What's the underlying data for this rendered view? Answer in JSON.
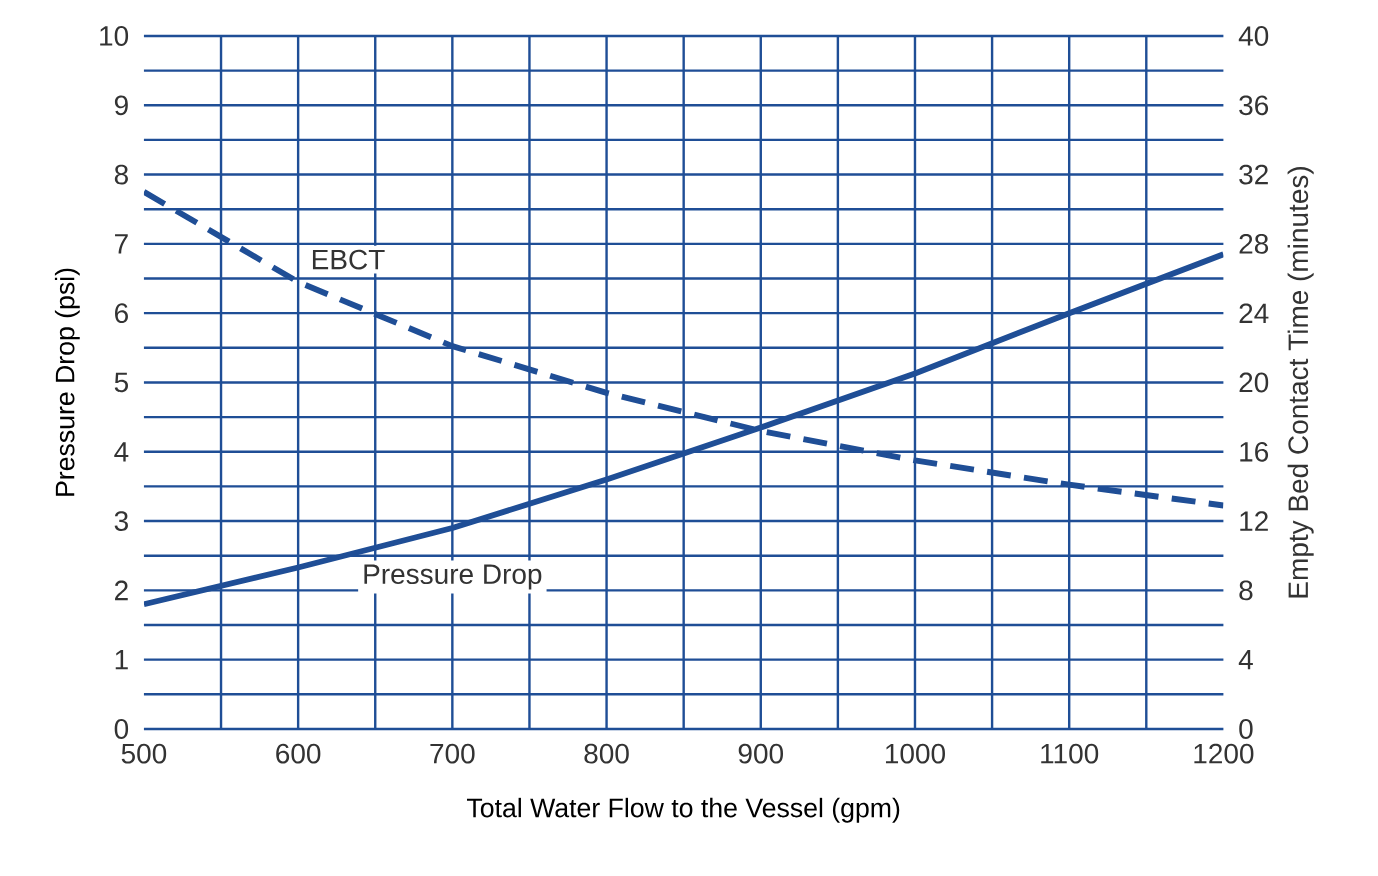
{
  "chart_data": {
    "type": "line",
    "xlabel": "Total Water Flow to the Vessel (gpm)",
    "ylabel": "Pressure Drop (psi)",
    "y2label": "Empty Bed Contact Time (minutes)",
    "x": [
      500,
      600,
      700,
      800,
      900,
      1000,
      1100,
      1200
    ],
    "series": [
      {
        "name": "Pressure Drop",
        "color": "#1f4e96",
        "line_style": "solid",
        "values": [
          1.8,
          2.33,
          2.9,
          3.6,
          4.35,
          5.13,
          6.0,
          6.85
        ]
      },
      {
        "name": "EBCT",
        "color": "#1f4e96",
        "line_style": "dashed",
        "axis": "y2",
        "values": [
          31,
          25.8,
          22.1,
          19.4,
          17.2,
          15.5,
          14.1,
          12.9
        ]
      }
    ],
    "xlim": [
      500,
      1200
    ],
    "xticks": [
      500,
      {
        "value": 550,
        "label": null
      },
      600,
      {
        "value": 650,
        "label": null
      },
      700,
      {
        "value": 750,
        "label": null
      },
      800,
      {
        "value": 850,
        "label": null
      },
      900,
      {
        "value": 950,
        "label": null
      },
      1000,
      {
        "value": 1050,
        "label": null
      },
      1100,
      {
        "value": 1150,
        "label": null
      },
      1200
    ],
    "ylim": [
      0,
      10
    ],
    "yticks": [
      0,
      {
        "value": 0.5,
        "label": null
      },
      1,
      {
        "value": 1.5,
        "label": null
      },
      2,
      {
        "value": 2.5,
        "label": null
      },
      3,
      {
        "value": 3.5,
        "label": null
      },
      4,
      {
        "value": 4.5,
        "label": null
      },
      5,
      {
        "value": 5.5,
        "label": null
      },
      6,
      {
        "value": 6.5,
        "label": null
      },
      7,
      {
        "value": 7.5,
        "label": null
      },
      8,
      {
        "value": 8.5,
        "label": null
      },
      9,
      {
        "value": 9.5,
        "label": null
      },
      10
    ],
    "y2lim": [
      0,
      40
    ],
    "y2ticks": [
      0,
      4,
      8,
      12,
      16,
      20,
      24,
      28,
      32,
      36,
      40
    ],
    "grid": true
  }
}
